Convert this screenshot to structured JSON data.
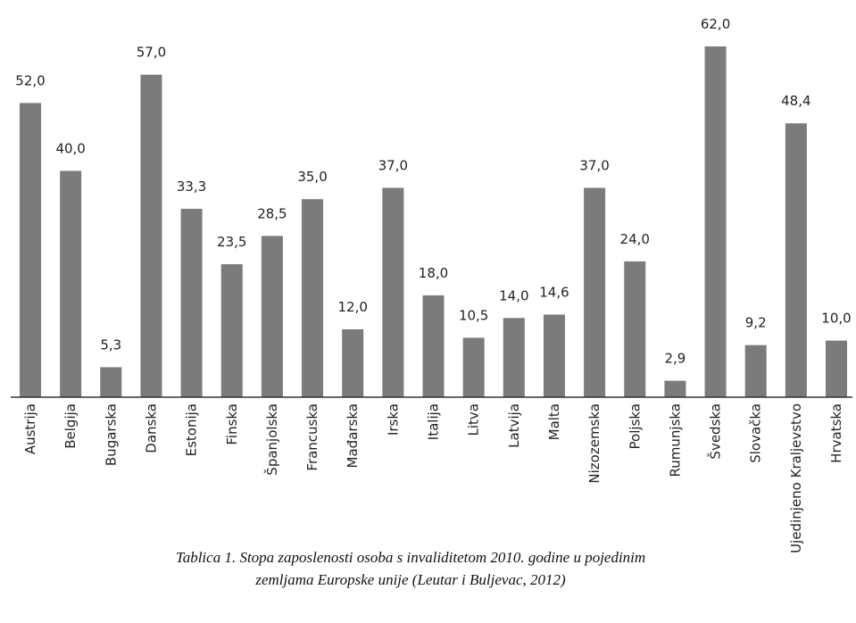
{
  "chart_data": {
    "type": "bar",
    "categories": [
      "Austrija",
      "Belgija",
      "Bugarska",
      "Danska",
      "Estonija",
      "Finska",
      "Španjolska",
      "Francuska",
      "Mađarska",
      "Irska",
      "Italija",
      "Litva",
      "Latvija",
      "Malta",
      "Nizozemska",
      "Poljska",
      "Rumunjska",
      "Švedska",
      "Slovačka",
      "Ujedinjeno Kraljevstvo",
      "Hrvatska"
    ],
    "values": [
      52.0,
      40.0,
      5.3,
      57.0,
      33.3,
      23.5,
      28.5,
      35.0,
      12.0,
      37.0,
      18.0,
      10.5,
      14.0,
      14.6,
      37.0,
      24.0,
      2.9,
      62.0,
      9.2,
      48.4,
      10.0
    ],
    "value_labels": [
      "52,0",
      "40,0",
      "5,3",
      "57,0",
      "33,3",
      "23,5",
      "28,5",
      "35,0",
      "12,0",
      "37,0",
      "18,0",
      "10,5",
      "14,0",
      "14,6",
      "37,0",
      "24,0",
      "2,9",
      "62,0",
      "9,2",
      "48,4",
      "10,0"
    ],
    "color": "#7b7b7b",
    "caption": [
      "Tablica 1. Stopa zaposlenosti osoba s invaliditetom 2010. godine u pojedinim",
      "zemljama Europske unije (Leutar i Buljevac, 2012)"
    ]
  }
}
